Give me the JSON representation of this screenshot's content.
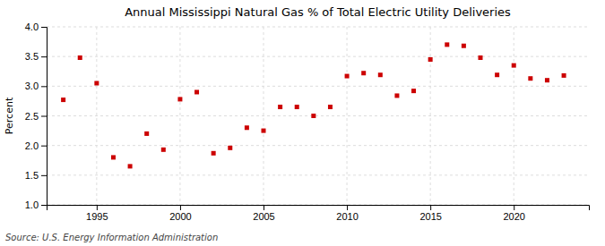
{
  "chart_data": {
    "type": "scatter",
    "title": "Annual Mississippi Natural Gas % of Total Electric Utility Deliveries",
    "ylabel": "Percent",
    "annotations": [
      "Source: U.S. Energy Information Administration"
    ],
    "x": [
      1993,
      1994,
      1995,
      1996,
      1997,
      1998,
      1999,
      2000,
      2001,
      2002,
      2003,
      2004,
      2005,
      2006,
      2007,
      2008,
      2009,
      2010,
      2011,
      2012,
      2013,
      2014,
      2015,
      2016,
      2017,
      2018,
      2019,
      2020,
      2021,
      2022,
      2023
    ],
    "values": [
      2.77,
      3.48,
      3.05,
      1.8,
      1.65,
      2.2,
      1.93,
      2.78,
      2.9,
      1.87,
      1.96,
      2.3,
      2.25,
      2.65,
      2.65,
      2.5,
      2.65,
      3.17,
      3.22,
      3.19,
      2.84,
      2.92,
      3.45,
      3.7,
      3.68,
      3.48,
      3.19,
      3.35,
      3.13,
      3.1,
      3.18
    ],
    "color": "#cc0000",
    "marker": "square",
    "xlim": [
      1992,
      2024.5
    ],
    "ylim": [
      1.0,
      4.0
    ],
    "xticks": [
      1995,
      2000,
      2005,
      2010,
      2015,
      2020
    ],
    "yticks": [
      {
        "value": 1.0,
        "label": "1.0"
      },
      1.5,
      {
        "value": 2.0,
        "label": "2.0"
      },
      2.5,
      {
        "value": 3.0,
        "label": "3.0"
      },
      3.5,
      {
        "value": 4.0,
        "label": "4.0"
      }
    ],
    "grid": true
  }
}
